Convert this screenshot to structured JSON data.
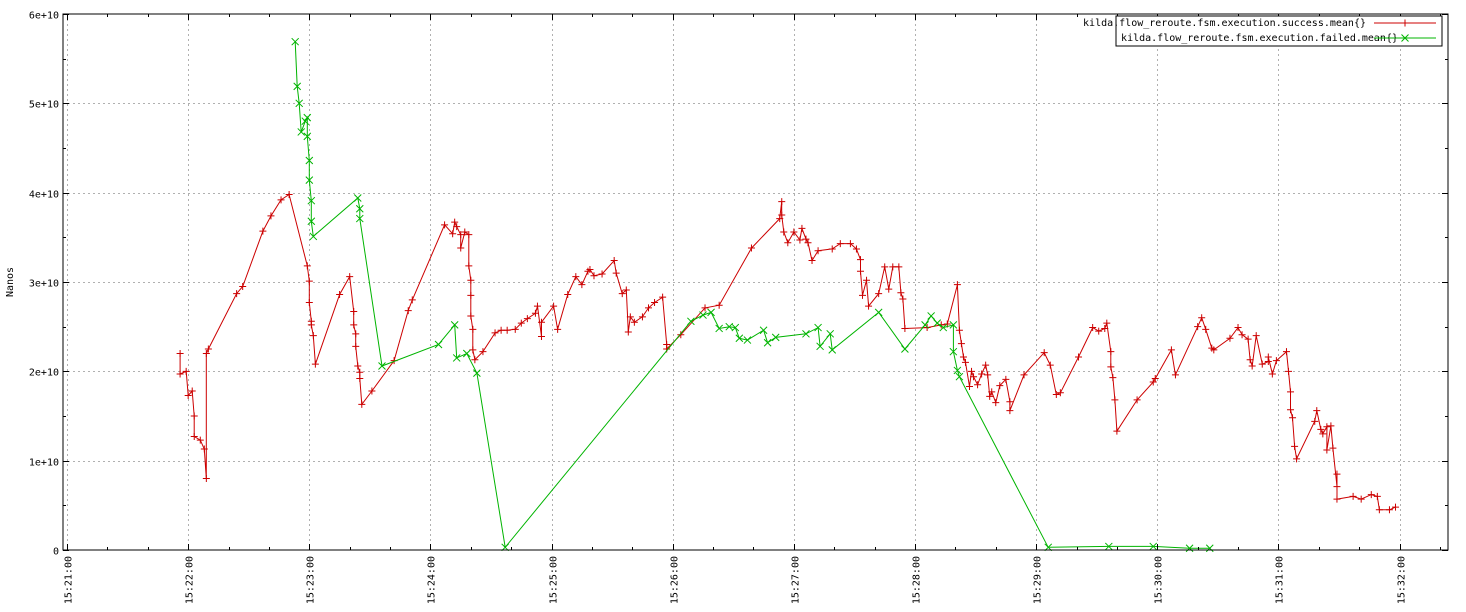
{
  "chart_data": {
    "type": "line",
    "ylabel": "Nanos",
    "ylim": [
      0,
      60000000000
    ],
    "y_ticks": [
      0,
      10000000000,
      20000000000,
      30000000000,
      40000000000,
      50000000000,
      60000000000
    ],
    "y_tick_labels": [
      "0",
      "1e+10",
      "2e+10",
      "3e+10",
      "4e+10",
      "5e+10",
      "6e+10"
    ],
    "x_ticks": [
      "15:21:00",
      "15:22:00",
      "15:23:00",
      "15:24:00",
      "15:25:00",
      "15:26:00",
      "15:27:00",
      "15:28:00",
      "15:29:00",
      "15:30:00",
      "15:31:00",
      "15:32:00"
    ],
    "xlim": [
      "15:20:58",
      "15:32:24"
    ],
    "grid": true,
    "legend_position": "top-right",
    "series": [
      {
        "name": "kilda.flow_reroute.fsm.execution.success.mean{}",
        "color": "#cc0000",
        "marker": "+",
        "points": [
          [
            "15:21:56",
            22000000000
          ],
          [
            "15:21:56",
            19700000000
          ],
          [
            "15:21:59",
            20000000000
          ],
          [
            "15:22:00",
            17300000000
          ],
          [
            "15:22:02",
            17800000000
          ],
          [
            "15:22:03",
            15000000000
          ],
          [
            "15:22:03",
            12700000000
          ],
          [
            "15:22:06",
            12300000000
          ],
          [
            "15:22:08",
            11300000000
          ],
          [
            "15:22:09",
            8000000000
          ],
          [
            "15:22:09",
            22000000000
          ],
          [
            "15:22:10",
            22500000000
          ],
          [
            "15:22:24",
            28700000000
          ],
          [
            "15:22:27",
            29500000000
          ],
          [
            "15:22:37",
            35700000000
          ],
          [
            "15:22:41",
            37400000000
          ],
          [
            "15:22:46",
            39200000000
          ],
          [
            "15:22:50",
            39800000000
          ],
          [
            "15:22:59",
            31800000000
          ],
          [
            "15:23:00",
            30100000000
          ],
          [
            "15:23:00",
            27700000000
          ],
          [
            "15:23:01",
            25600000000
          ],
          [
            "15:23:01",
            25200000000
          ],
          [
            "15:23:02",
            24000000000
          ],
          [
            "15:23:03",
            20800000000
          ],
          [
            "15:23:15",
            28600000000
          ],
          [
            "15:23:20",
            30600000000
          ],
          [
            "15:23:22",
            26700000000
          ],
          [
            "15:23:22",
            25200000000
          ],
          [
            "15:23:23",
            24200000000
          ],
          [
            "15:23:23",
            22800000000
          ],
          [
            "15:23:24",
            20600000000
          ],
          [
            "15:23:25",
            19900000000
          ],
          [
            "15:23:25",
            19200000000
          ],
          [
            "15:23:26",
            16300000000
          ],
          [
            "15:23:31",
            17800000000
          ],
          [
            "15:23:42",
            21200000000
          ],
          [
            "15:23:49",
            26800000000
          ],
          [
            "15:23:51",
            28000000000
          ],
          [
            "15:24:07",
            36400000000
          ],
          [
            "15:24:11",
            35400000000
          ],
          [
            "15:24:12",
            36700000000
          ],
          [
            "15:24:13",
            36200000000
          ],
          [
            "15:24:15",
            35300000000
          ],
          [
            "15:24:15",
            33800000000
          ],
          [
            "15:24:17",
            35600000000
          ],
          [
            "15:24:19",
            35300000000
          ],
          [
            "15:24:19",
            31800000000
          ],
          [
            "15:24:20",
            30200000000
          ],
          [
            "15:24:20",
            28500000000
          ],
          [
            "15:24:20",
            26200000000
          ],
          [
            "15:24:21",
            24700000000
          ],
          [
            "15:24:21",
            22400000000
          ],
          [
            "15:24:22",
            21300000000
          ],
          [
            "15:24:26",
            22200000000
          ],
          [
            "15:24:32",
            24300000000
          ],
          [
            "15:24:35",
            24600000000
          ],
          [
            "15:24:38",
            24600000000
          ],
          [
            "15:24:42",
            24700000000
          ],
          [
            "15:24:45",
            25400000000
          ],
          [
            "15:24:48",
            25900000000
          ],
          [
            "15:24:52",
            26500000000
          ],
          [
            "15:24:53",
            27300000000
          ],
          [
            "15:24:55",
            23900000000
          ],
          [
            "15:24:55",
            25500000000
          ],
          [
            "15:25:01",
            27300000000
          ],
          [
            "15:25:03",
            24700000000
          ],
          [
            "15:25:08",
            28600000000
          ],
          [
            "15:25:12",
            30600000000
          ],
          [
            "15:25:15",
            29700000000
          ],
          [
            "15:25:18",
            31200000000
          ],
          [
            "15:25:19",
            31400000000
          ],
          [
            "15:25:21",
            30700000000
          ],
          [
            "15:25:25",
            30900000000
          ],
          [
            "15:25:31",
            32400000000
          ],
          [
            "15:25:32",
            31000000000
          ],
          [
            "15:25:35",
            28700000000
          ],
          [
            "15:25:37",
            29100000000
          ],
          [
            "15:25:38",
            24400000000
          ],
          [
            "15:25:39",
            26100000000
          ],
          [
            "15:25:41",
            25500000000
          ],
          [
            "15:25:45",
            26100000000
          ],
          [
            "15:25:48",
            27100000000
          ],
          [
            "15:25:51",
            27700000000
          ],
          [
            "15:25:55",
            28300000000
          ],
          [
            "15:25:57",
            23000000000
          ],
          [
            "15:25:57",
            22500000000
          ],
          [
            "15:26:04",
            24100000000
          ],
          [
            "15:26:16",
            27100000000
          ],
          [
            "15:26:23",
            27400000000
          ],
          [
            "15:26:39",
            33800000000
          ],
          [
            "15:26:53",
            37100000000
          ],
          [
            "15:26:54",
            39000000000
          ],
          [
            "15:26:54",
            37500000000
          ],
          [
            "15:26:55",
            35600000000
          ],
          [
            "15:26:57",
            34400000000
          ],
          [
            "15:27:00",
            35600000000
          ],
          [
            "15:27:03",
            34700000000
          ],
          [
            "15:27:04",
            36000000000
          ],
          [
            "15:27:06",
            34800000000
          ],
          [
            "15:27:07",
            34400000000
          ],
          [
            "15:27:09",
            32400000000
          ],
          [
            "15:27:12",
            33500000000
          ],
          [
            "15:27:19",
            33700000000
          ],
          [
            "15:27:23",
            34300000000
          ],
          [
            "15:27:28",
            34300000000
          ],
          [
            "15:27:31",
            33700000000
          ],
          [
            "15:27:33",
            32500000000
          ],
          [
            "15:27:33",
            31200000000
          ],
          [
            "15:27:34",
            28500000000
          ],
          [
            "15:27:36",
            30200000000
          ],
          [
            "15:27:37",
            27300000000
          ],
          [
            "15:27:42",
            28700000000
          ],
          [
            "15:27:45",
            31700000000
          ],
          [
            "15:27:47",
            29200000000
          ],
          [
            "15:27:49",
            31700000000
          ],
          [
            "15:27:52",
            31700000000
          ],
          [
            "15:27:53",
            28800000000
          ],
          [
            "15:27:54",
            28100000000
          ],
          [
            "15:27:55",
            24800000000
          ],
          [
            "15:28:06",
            24900000000
          ],
          [
            "15:28:13",
            25200000000
          ],
          [
            "15:28:16",
            25300000000
          ],
          [
            "15:28:21",
            29700000000
          ],
          [
            "15:28:22",
            24600000000
          ],
          [
            "15:28:23",
            23100000000
          ],
          [
            "15:28:24",
            21600000000
          ],
          [
            "15:28:25",
            21000000000
          ],
          [
            "15:28:27",
            18300000000
          ],
          [
            "15:28:28",
            20000000000
          ],
          [
            "15:28:29",
            19400000000
          ],
          [
            "15:28:31",
            18500000000
          ],
          [
            "15:28:33",
            19700000000
          ],
          [
            "15:28:35",
            20700000000
          ],
          [
            "15:28:36",
            19600000000
          ],
          [
            "15:28:37",
            17200000000
          ],
          [
            "15:28:38",
            17700000000
          ],
          [
            "15:28:40",
            16500000000
          ],
          [
            "15:28:42",
            18400000000
          ],
          [
            "15:28:45",
            19100000000
          ],
          [
            "15:28:47",
            16600000000
          ],
          [
            "15:28:47",
            15600000000
          ],
          [
            "15:28:54",
            19600000000
          ],
          [
            "15:29:04",
            22100000000
          ],
          [
            "15:29:07",
            20700000000
          ],
          [
            "15:29:10",
            17400000000
          ],
          [
            "15:29:12",
            17600000000
          ],
          [
            "15:29:21",
            21600000000
          ],
          [
            "15:29:28",
            24900000000
          ],
          [
            "15:29:31",
            24500000000
          ],
          [
            "15:29:34",
            24800000000
          ],
          [
            "15:29:35",
            25400000000
          ],
          [
            "15:29:37",
            22200000000
          ],
          [
            "15:29:37",
            20500000000
          ],
          [
            "15:29:38",
            19300000000
          ],
          [
            "15:29:39",
            16800000000
          ],
          [
            "15:29:40",
            13300000000
          ],
          [
            "15:29:50",
            16800000000
          ],
          [
            "15:29:58",
            18800000000
          ],
          [
            "15:29:59",
            19200000000
          ],
          [
            "15:30:07",
            22400000000
          ],
          [
            "15:30:09",
            19600000000
          ],
          [
            "15:30:20",
            25000000000
          ],
          [
            "15:30:22",
            26000000000
          ],
          [
            "15:30:24",
            24700000000
          ],
          [
            "15:30:27",
            22600000000
          ],
          [
            "15:30:28",
            22400000000
          ],
          [
            "15:30:36",
            23700000000
          ],
          [
            "15:30:40",
            24900000000
          ],
          [
            "15:30:42",
            24100000000
          ],
          [
            "15:30:45",
            23600000000
          ],
          [
            "15:30:46",
            21300000000
          ],
          [
            "15:30:47",
            20600000000
          ],
          [
            "15:30:49",
            24000000000
          ],
          [
            "15:30:52",
            20800000000
          ],
          [
            "15:30:55",
            21100000000
          ],
          [
            "15:30:55",
            21600000000
          ],
          [
            "15:30:57",
            19700000000
          ],
          [
            "15:30:59",
            21200000000
          ],
          [
            "15:31:04",
            22200000000
          ],
          [
            "15:31:05",
            20000000000
          ],
          [
            "15:31:06",
            17700000000
          ],
          [
            "15:31:06",
            15700000000
          ],
          [
            "15:31:07",
            14800000000
          ],
          [
            "15:31:08",
            11600000000
          ],
          [
            "15:31:09",
            10200000000
          ],
          [
            "15:31:18",
            14400000000
          ],
          [
            "15:31:19",
            15600000000
          ],
          [
            "15:31:21",
            13500000000
          ],
          [
            "15:31:22",
            13000000000
          ],
          [
            "15:31:24",
            13800000000
          ],
          [
            "15:31:24",
            11200000000
          ],
          [
            "15:31:26",
            13900000000
          ],
          [
            "15:31:27",
            11400000000
          ],
          [
            "15:31:29",
            7100000000
          ],
          [
            "15:31:29",
            8500000000
          ],
          [
            "15:31:29",
            5700000000
          ],
          [
            "15:31:37",
            6000000000
          ],
          [
            "15:31:41",
            5700000000
          ],
          [
            "15:31:46",
            6200000000
          ],
          [
            "15:31:49",
            6000000000
          ],
          [
            "15:31:50",
            4500000000
          ],
          [
            "15:31:55",
            4500000000
          ],
          [
            "15:31:58",
            4800000000
          ]
        ]
      },
      {
        "name": "kilda.flow_reroute.fsm.execution.failed.mean{}",
        "color": "#00b400",
        "marker": "x",
        "points": [
          [
            "15:22:53",
            56900000000
          ],
          [
            "15:22:54",
            51900000000
          ],
          [
            "15:22:55",
            50000000000
          ],
          [
            "15:22:56",
            46800000000
          ],
          [
            "15:22:58",
            48000000000
          ],
          [
            "15:22:59",
            48400000000
          ],
          [
            "15:22:59",
            46300000000
          ],
          [
            "15:23:00",
            43600000000
          ],
          [
            "15:23:00",
            41400000000
          ],
          [
            "15:23:01",
            39100000000
          ],
          [
            "15:23:01",
            36800000000
          ],
          [
            "15:23:02",
            35100000000
          ],
          [
            "15:23:24",
            39400000000
          ],
          [
            "15:23:25",
            38200000000
          ],
          [
            "15:23:25",
            37100000000
          ],
          [
            "15:23:36",
            20600000000
          ],
          [
            "15:24:04",
            23000000000
          ],
          [
            "15:24:12",
            25200000000
          ],
          [
            "15:24:13",
            21500000000
          ],
          [
            "15:24:18",
            22000000000
          ],
          [
            "15:24:23",
            19800000000
          ],
          [
            "15:24:37",
            300000000
          ],
          [
            "15:26:09",
            25600000000
          ],
          [
            "15:26:15",
            26300000000
          ],
          [
            "15:26:19",
            26600000000
          ],
          [
            "15:26:23",
            24800000000
          ],
          [
            "15:26:28",
            25000000000
          ],
          [
            "15:26:31",
            24900000000
          ],
          [
            "15:26:33",
            23700000000
          ],
          [
            "15:26:37",
            23500000000
          ],
          [
            "15:26:45",
            24600000000
          ],
          [
            "15:26:47",
            23200000000
          ],
          [
            "15:26:51",
            23800000000
          ],
          [
            "15:27:06",
            24200000000
          ],
          [
            "15:27:12",
            24900000000
          ],
          [
            "15:27:13",
            22800000000
          ],
          [
            "15:27:18",
            24200000000
          ],
          [
            "15:27:19",
            22400000000
          ],
          [
            "15:27:42",
            26600000000
          ],
          [
            "15:27:55",
            22500000000
          ],
          [
            "15:28:05",
            25200000000
          ],
          [
            "15:28:08",
            26200000000
          ],
          [
            "15:28:11",
            25400000000
          ],
          [
            "15:28:14",
            24900000000
          ],
          [
            "15:28:19",
            25200000000
          ],
          [
            "15:28:19",
            22200000000
          ],
          [
            "15:28:21",
            20100000000
          ],
          [
            "15:28:22",
            19400000000
          ],
          [
            "15:29:06",
            300000000
          ],
          [
            "15:29:36",
            400000000
          ],
          [
            "15:29:58",
            400000000
          ],
          [
            "15:30:16",
            200000000
          ],
          [
            "15:30:26",
            200000000
          ]
        ]
      }
    ]
  }
}
